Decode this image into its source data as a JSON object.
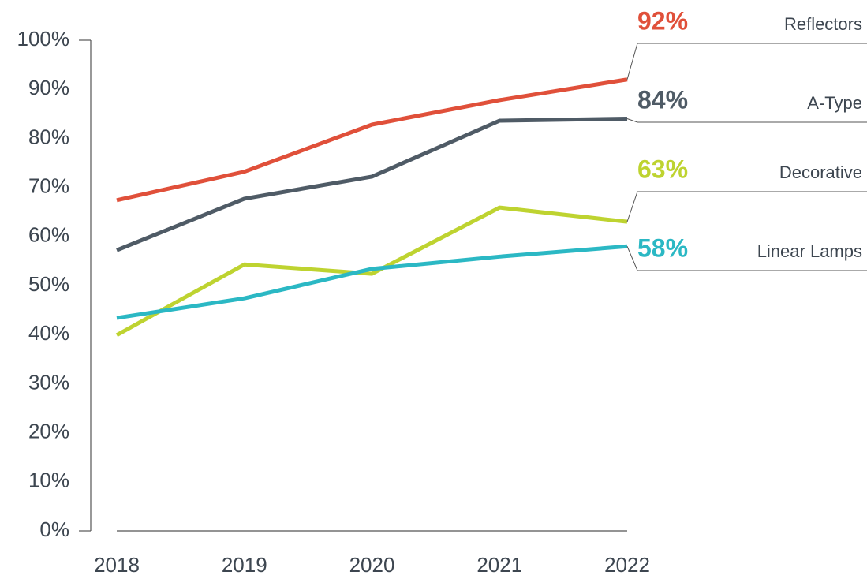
{
  "chart_data": {
    "type": "line",
    "categories": [
      "2018",
      "2019",
      "2020",
      "2021",
      "2022"
    ],
    "series": [
      {
        "name": "Reflectors",
        "color": "#e0503a",
        "values": [
          67.4,
          73.2,
          82.8,
          87.8,
          92
        ],
        "value_labels": [
          null,
          null,
          null,
          null,
          "92%"
        ]
      },
      {
        "name": "A-Type",
        "color": "#4f5b66",
        "values": [
          57.2,
          67.7,
          72.2,
          83.6,
          84
        ],
        "value_labels": [
          null,
          null,
          null,
          null,
          "84%"
        ]
      },
      {
        "name": "Decorative",
        "color": "#bed330",
        "values": [
          39.9,
          54.3,
          52.4,
          65.9,
          63
        ],
        "value_labels": [
          null,
          null,
          null,
          null,
          "63%"
        ]
      },
      {
        "name": "Linear Lamps",
        "color": "#2bb8c4",
        "values": [
          43.4,
          47.4,
          53.4,
          55.9,
          58
        ],
        "value_labels": [
          null,
          null,
          null,
          null,
          "58%"
        ]
      }
    ],
    "ylim": [
      0,
      100
    ],
    "yticks": [
      {
        "value": 0,
        "label": "0%"
      },
      {
        "value": 10,
        "label": "10%"
      },
      {
        "value": 20,
        "label": "20%"
      },
      {
        "value": 30,
        "label": "30%"
      },
      {
        "value": 40,
        "label": "40%"
      },
      {
        "value": 50,
        "label": "50%"
      },
      {
        "value": 60,
        "label": "60%"
      },
      {
        "value": 70,
        "label": "70%"
      },
      {
        "value": 80,
        "label": "80%"
      },
      {
        "value": 90,
        "label": "90%"
      },
      {
        "value": 100,
        "label": "100%"
      }
    ]
  }
}
